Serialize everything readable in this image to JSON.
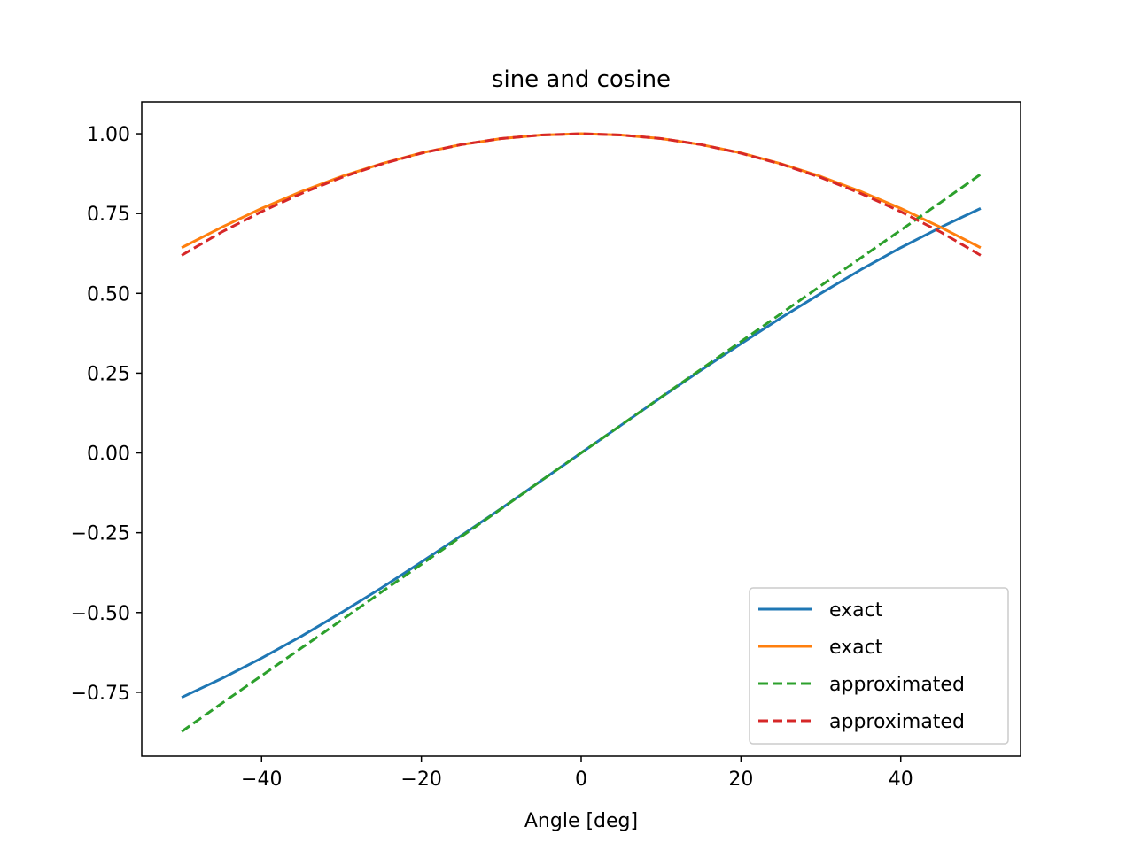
{
  "chart_data": {
    "type": "line",
    "title": "sine and cosine",
    "xlabel": "Angle [deg]",
    "ylabel": "",
    "xlim": [
      -55,
      55
    ],
    "ylim": [
      -0.95,
      1.1
    ],
    "xticks": [
      -40,
      -20,
      0,
      20,
      40
    ],
    "xtick_labels": [
      "−40",
      "−20",
      "0",
      "20",
      "40"
    ],
    "yticks": [
      1.0,
      0.75,
      0.5,
      0.25,
      0.0,
      -0.25,
      -0.5,
      -0.75
    ],
    "ytick_labels": [
      "1.00",
      "0.75",
      "0.50",
      "0.25",
      "0.00",
      "−0.25",
      "−0.50",
      "−0.75"
    ],
    "grid": false,
    "legend_position": "lower-right",
    "x": [
      -50,
      -45,
      -40,
      -35,
      -30,
      -25,
      -20,
      -15,
      -10,
      -5,
      0,
      5,
      10,
      15,
      20,
      25,
      30,
      35,
      40,
      45,
      50
    ],
    "series": [
      {
        "name": "exact",
        "color": "#1f77b4",
        "dash": "solid",
        "values": [
          -0.766,
          -0.707,
          -0.643,
          -0.574,
          -0.5,
          -0.423,
          -0.342,
          -0.259,
          -0.174,
          -0.087,
          0.0,
          0.087,
          0.174,
          0.259,
          0.342,
          0.423,
          0.5,
          0.574,
          0.643,
          0.707,
          0.766
        ]
      },
      {
        "name": "exact",
        "color": "#ff7f0e",
        "dash": "solid",
        "values": [
          0.643,
          0.707,
          0.766,
          0.819,
          0.866,
          0.906,
          0.94,
          0.966,
          0.985,
          0.996,
          1.0,
          0.996,
          0.985,
          0.966,
          0.94,
          0.906,
          0.866,
          0.819,
          0.766,
          0.707,
          0.643
        ]
      },
      {
        "name": "approximated",
        "color": "#2ca02c",
        "dash": "dashed",
        "values": [
          -0.873,
          -0.785,
          -0.698,
          -0.611,
          -0.524,
          -0.436,
          -0.349,
          -0.262,
          -0.175,
          -0.087,
          0.0,
          0.087,
          0.175,
          0.262,
          0.349,
          0.436,
          0.524,
          0.611,
          0.698,
          0.785,
          0.873
        ]
      },
      {
        "name": "approximated",
        "color": "#d62728",
        "dash": "dashed",
        "values": [
          0.619,
          0.692,
          0.756,
          0.813,
          0.863,
          0.905,
          0.939,
          0.966,
          0.985,
          0.996,
          1.0,
          0.996,
          0.985,
          0.966,
          0.939,
          0.905,
          0.863,
          0.813,
          0.756,
          0.692,
          0.619
        ]
      }
    ]
  }
}
